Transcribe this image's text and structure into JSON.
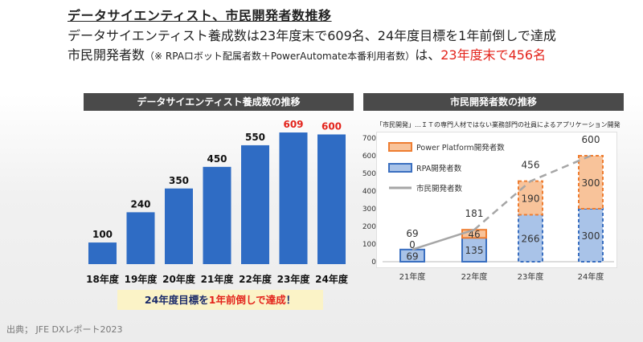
{
  "header": {
    "title": "データサイエンティスト、市民開発者数推移",
    "line2": "データサイエンティスト養成数は23年度末で609名、24年度目標を1年前倒しで達成",
    "line3_prefix": "市民開発者数",
    "line3_note": "（※ RPAロボット配属者数＋PowerAutomate本番利用者数）",
    "line3_mid": "は、",
    "line3_highlight": "23年度末で456名"
  },
  "left_panel": {
    "title": "データサイエンティスト養成数の推移"
  },
  "right_panel": {
    "title": "市民開発者数の推移",
    "note": "「市民開発」…ＩＴの専門人材ではない業務部門の社員によるアプリケーション開発"
  },
  "target": {
    "prefix": "24年度目標を",
    "highlight": "1年前倒しで達成",
    "suffix": "！"
  },
  "source": "出典； JFE DXレポート2023",
  "colors": {
    "bar_blue": "#2f6cc4",
    "red": "#e3231b",
    "rpa_fill": "#a9c3e8",
    "rpa_border": "#3a6fc0",
    "pp_fill": "#f8c39a",
    "pp_border": "#ee7d31",
    "line_gray": "#a6a6a6"
  },
  "chart_data": [
    {
      "type": "bar",
      "title": "データサイエンティスト養成数の推移",
      "categories": [
        "18年度",
        "19年度",
        "20年度",
        "21年度",
        "22年度",
        "23年度",
        "24年度"
      ],
      "values": [
        100,
        240,
        350,
        450,
        550,
        609,
        600
      ],
      "highlight_indices": [
        5,
        6
      ],
      "ylim": [
        0,
        650
      ]
    },
    {
      "type": "bar",
      "stacked": true,
      "title": "市民開発者数の推移",
      "categories": [
        "21年度",
        "22年度",
        "23年度",
        "24年度"
      ],
      "ylim": [
        0,
        700
      ],
      "yticks": [
        0,
        100,
        200,
        300,
        400,
        500,
        600,
        700
      ],
      "legend_position": "top-left",
      "series": [
        {
          "name": "RPA開発者数",
          "values": [
            69,
            135,
            266,
            300
          ],
          "dashed_indices": [
            2,
            3
          ]
        },
        {
          "name": "Power Platform開発者数",
          "values": [
            0,
            46,
            190,
            300
          ],
          "dashed_indices": [
            2,
            3
          ]
        }
      ],
      "line": {
        "name": "市民開発者数",
        "values": [
          69,
          181,
          456,
          600
        ],
        "dashed_from_index": 1
      }
    }
  ]
}
